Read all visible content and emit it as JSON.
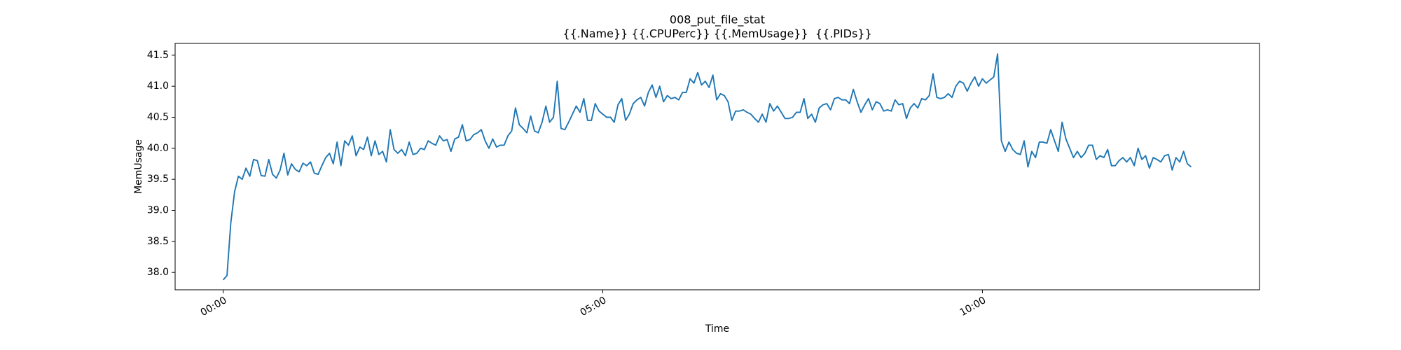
{
  "chart_data": {
    "type": "line",
    "title": "008_put_file_stat",
    "subtitle": "{{.Name}} {{.CPUPerc}} {{.MemUsage}}  {{.PIDs}}",
    "xlabel": "Time",
    "ylabel": "MemUsage",
    "color": "#1f77b4",
    "xlim": [
      -38,
      819
    ],
    "ylim": [
      37.72,
      41.69
    ],
    "xticks": [
      {
        "value": 0,
        "label": "00:00"
      },
      {
        "value": 300,
        "label": "05:00"
      },
      {
        "value": 600,
        "label": "10:00"
      }
    ],
    "yticks": [
      {
        "value": 38,
        "label": "38.0"
      },
      38.5,
      {
        "value": 39,
        "label": "39.0"
      },
      39.5,
      {
        "value": 40,
        "label": "40.0"
      },
      40.5,
      {
        "value": 41,
        "label": "41.0"
      },
      41.5
    ],
    "x": [
      0,
      3,
      6,
      9,
      12,
      15,
      18,
      21,
      24,
      27,
      30,
      33,
      36,
      39,
      42,
      45,
      48,
      51,
      54,
      57,
      60,
      63,
      66,
      69,
      72,
      75,
      78,
      81,
      84,
      87,
      90,
      93,
      96,
      99,
      102,
      105,
      108,
      111,
      114,
      117,
      120,
      123,
      126,
      129,
      132,
      135,
      138,
      141,
      144,
      147,
      150,
      153,
      156,
      159,
      162,
      165,
      168,
      171,
      174,
      177,
      180,
      183,
      186,
      189,
      192,
      195,
      198,
      201,
      204,
      207,
      210,
      213,
      216,
      219,
      222,
      225,
      228,
      231,
      234,
      237,
      240,
      243,
      246,
      249,
      252,
      255,
      258,
      261,
      264,
      267,
      270,
      273,
      276,
      279,
      282,
      285,
      288,
      291,
      294,
      297,
      300,
      303,
      306,
      309,
      312,
      315,
      318,
      321,
      324,
      327,
      330,
      333,
      336,
      339,
      342,
      345,
      348,
      351,
      354,
      357,
      360,
      363,
      366,
      369,
      372,
      375,
      378,
      381,
      384,
      387,
      390,
      393,
      396,
      399,
      402,
      405,
      408,
      411,
      414,
      417,
      420,
      423,
      426,
      429,
      432,
      435,
      438,
      441,
      444,
      447,
      450,
      453,
      456,
      459,
      462,
      465,
      468,
      471,
      474,
      477,
      480,
      483,
      486,
      489,
      492,
      495,
      498,
      501,
      504,
      507,
      510,
      513,
      516,
      519,
      522,
      525,
      528,
      531,
      534,
      537,
      540,
      543,
      546,
      549,
      552,
      555,
      558,
      561,
      564,
      567,
      570,
      573,
      576,
      579,
      582,
      585,
      588,
      591,
      594,
      597,
      600,
      603,
      606,
      609,
      612,
      615,
      618,
      621,
      624,
      627,
      630,
      633,
      636,
      639,
      642,
      645,
      648,
      651,
      654,
      657,
      660,
      663,
      666,
      669,
      672,
      675,
      678,
      681,
      684,
      687,
      690,
      693,
      696,
      699,
      702,
      705,
      708,
      711,
      714,
      717,
      720,
      723,
      726,
      729,
      732,
      735,
      738,
      741,
      744,
      747,
      750,
      753,
      756,
      759,
      762,
      765
    ],
    "values": [
      37.88,
      37.95,
      38.8,
      39.3,
      39.55,
      39.5,
      39.68,
      39.55,
      39.82,
      39.8,
      39.56,
      39.55,
      39.82,
      39.58,
      39.52,
      39.65,
      39.92,
      39.57,
      39.75,
      39.66,
      39.62,
      39.76,
      39.72,
      39.78,
      39.6,
      39.58,
      39.72,
      39.85,
      39.92,
      39.75,
      40.1,
      39.72,
      40.12,
      40.05,
      40.2,
      39.88,
      40.02,
      39.98,
      40.18,
      39.88,
      40.12,
      39.9,
      39.95,
      39.78,
      40.3,
      39.98,
      39.92,
      39.98,
      39.88,
      40.1,
      39.9,
      39.92,
      40.0,
      39.98,
      40.12,
      40.08,
      40.05,
      40.2,
      40.12,
      40.14,
      39.95,
      40.15,
      40.18,
      40.38,
      40.12,
      40.14,
      40.22,
      40.25,
      40.3,
      40.12,
      40.0,
      40.15,
      40.02,
      40.05,
      40.05,
      40.2,
      40.28,
      40.65,
      40.38,
      40.32,
      40.25,
      40.52,
      40.28,
      40.25,
      40.42,
      40.68,
      40.42,
      40.5,
      41.08,
      40.32,
      40.3,
      40.42,
      40.55,
      40.68,
      40.58,
      40.8,
      40.45,
      40.45,
      40.72,
      40.6,
      40.55,
      40.5,
      40.5,
      40.42,
      40.7,
      40.8,
      40.45,
      40.55,
      40.72,
      40.78,
      40.82,
      40.68,
      40.9,
      41.02,
      40.82,
      41.0,
      40.75,
      40.85,
      40.8,
      40.82,
      40.78,
      40.9,
      40.9,
      41.12,
      41.05,
      41.22,
      41.02,
      41.08,
      40.98,
      41.18,
      40.78,
      40.88,
      40.85,
      40.75,
      40.45,
      40.6,
      40.6,
      40.62,
      40.58,
      40.55,
      40.48,
      40.42,
      40.55,
      40.42,
      40.72,
      40.6,
      40.68,
      40.58,
      40.48,
      40.48,
      40.5,
      40.58,
      40.58,
      40.8,
      40.48,
      40.55,
      40.42,
      40.65,
      40.7,
      40.72,
      40.62,
      40.8,
      40.82,
      40.78,
      40.78,
      40.72,
      40.95,
      40.75,
      40.58,
      40.7,
      40.8,
      40.62,
      40.75,
      40.72,
      40.6,
      40.62,
      40.6,
      40.78,
      40.7,
      40.72,
      40.48,
      40.65,
      40.72,
      40.65,
      40.8,
      40.78,
      40.85,
      41.2,
      40.82,
      40.8,
      40.82,
      40.88,
      40.82,
      41.0,
      41.08,
      41.05,
      40.92,
      41.05,
      41.15,
      41.0,
      41.12,
      41.05,
      41.1,
      41.15,
      41.52,
      40.12,
      39.95,
      40.1,
      39.98,
      39.92,
      39.9,
      40.12,
      39.7,
      39.95,
      39.85,
      40.1,
      40.1,
      40.08,
      40.3,
      40.12,
      39.95,
      40.42,
      40.15,
      40.0,
      39.85,
      39.95,
      39.85,
      39.92,
      40.05,
      40.05,
      39.82,
      39.88,
      39.85,
      39.98,
      39.72,
      39.72,
      39.8,
      39.85,
      39.78,
      39.85,
      39.72,
      40.0,
      39.82,
      39.88,
      39.68,
      39.85,
      39.82,
      39.78,
      39.88,
      39.9,
      39.65,
      39.85,
      39.78,
      39.95,
      39.75,
      39.7
    ]
  }
}
